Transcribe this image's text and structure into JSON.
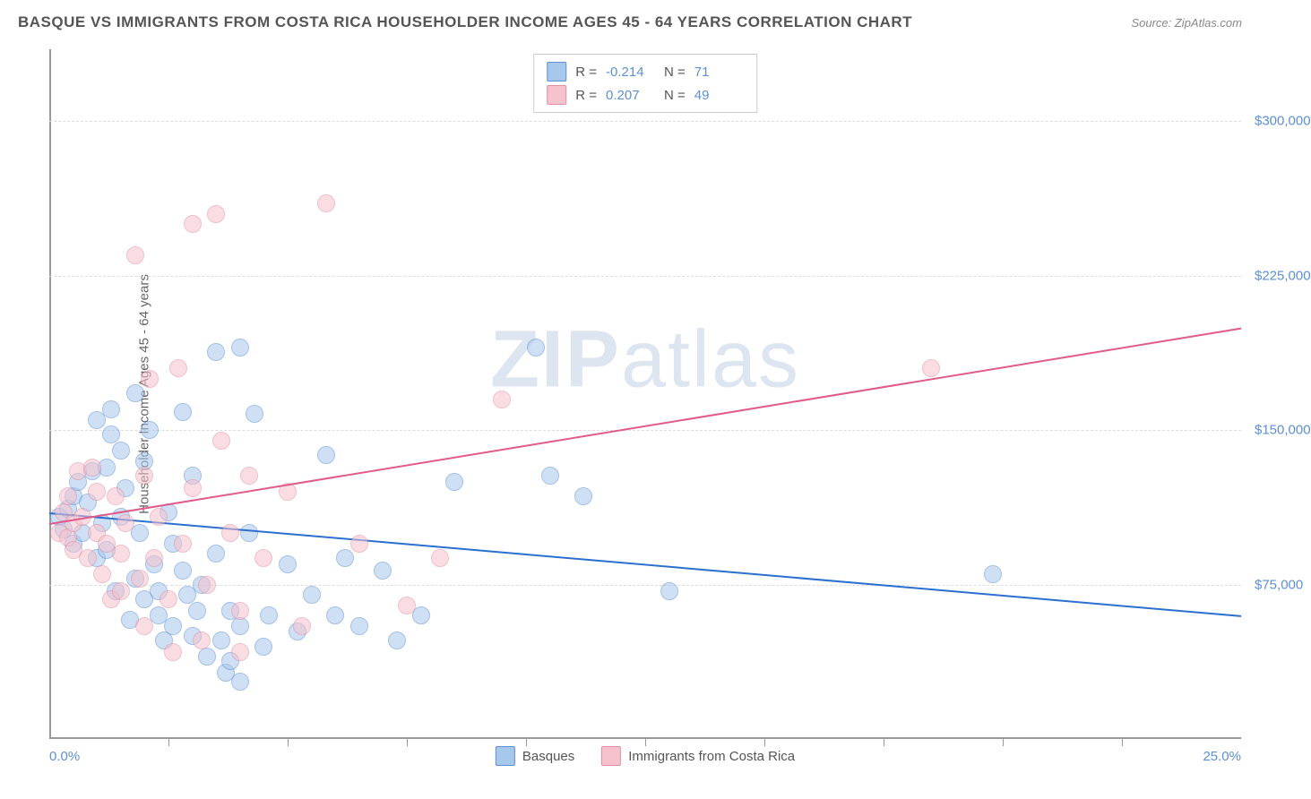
{
  "header": {
    "title": "BASQUE VS IMMIGRANTS FROM COSTA RICA HOUSEHOLDER INCOME AGES 45 - 64 YEARS CORRELATION CHART",
    "source_prefix": "Source: ",
    "source_name": "ZipAtlas.com"
  },
  "watermark": {
    "part1": "ZIP",
    "part2": "atlas"
  },
  "chart": {
    "type": "scatter",
    "ylabel": "Householder Income Ages 45 - 64 years",
    "xlim": [
      0,
      25
    ],
    "ylim": [
      0,
      335000
    ],
    "xmin_label": "0.0%",
    "xmax_label": "25.0%",
    "yticks": [
      75000,
      150000,
      225000,
      300000
    ],
    "ytick_labels": [
      "$75,000",
      "$150,000",
      "$225,000",
      "$300,000"
    ],
    "xtick_positions": [
      2.5,
      5,
      7.5,
      10,
      12.5,
      15,
      17.5,
      20,
      22.5
    ],
    "background_color": "#ffffff",
    "grid_color": "#dddddd",
    "axis_color": "#999999",
    "tick_label_color": "#5b8fd6",
    "marker_radius": 10,
    "marker_opacity": 0.55,
    "series": [
      {
        "name": "Basques",
        "fill_color": "#a8c7ec",
        "stroke_color": "#5b8fd6",
        "trend_color": "#2b6fd1",
        "r_value": "-0.214",
        "n_value": "71",
        "trend": {
          "x1": 0,
          "y1": 110000,
          "x2": 25,
          "y2": 60000
        },
        "points": [
          [
            0.2,
            108000
          ],
          [
            0.3,
            102000
          ],
          [
            0.4,
            112000
          ],
          [
            0.5,
            95000
          ],
          [
            0.5,
            118000
          ],
          [
            0.6,
            125000
          ],
          [
            0.7,
            100000
          ],
          [
            0.8,
            115000
          ],
          [
            0.9,
            130000
          ],
          [
            1.0,
            88000
          ],
          [
            1.0,
            155000
          ],
          [
            1.1,
            105000
          ],
          [
            1.2,
            132000
          ],
          [
            1.2,
            92000
          ],
          [
            1.3,
            148000
          ],
          [
            1.3,
            160000
          ],
          [
            1.4,
            72000
          ],
          [
            1.5,
            140000
          ],
          [
            1.5,
            108000
          ],
          [
            1.6,
            122000
          ],
          [
            1.7,
            58000
          ],
          [
            1.8,
            168000
          ],
          [
            1.8,
            78000
          ],
          [
            1.9,
            100000
          ],
          [
            2.0,
            135000
          ],
          [
            2.0,
            68000
          ],
          [
            2.1,
            150000
          ],
          [
            2.2,
            85000
          ],
          [
            2.3,
            72000
          ],
          [
            2.3,
            60000
          ],
          [
            2.4,
            48000
          ],
          [
            2.5,
            110000
          ],
          [
            2.6,
            95000
          ],
          [
            2.6,
            55000
          ],
          [
            2.8,
            159000
          ],
          [
            2.8,
            82000
          ],
          [
            2.9,
            70000
          ],
          [
            3.0,
            128000
          ],
          [
            3.0,
            50000
          ],
          [
            3.1,
            62000
          ],
          [
            3.2,
            75000
          ],
          [
            3.3,
            40000
          ],
          [
            3.5,
            188000
          ],
          [
            3.5,
            90000
          ],
          [
            3.6,
            48000
          ],
          [
            3.7,
            32000
          ],
          [
            3.8,
            62000
          ],
          [
            3.8,
            38000
          ],
          [
            4.0,
            55000
          ],
          [
            4.0,
            190000
          ],
          [
            4.0,
            28000
          ],
          [
            4.2,
            100000
          ],
          [
            4.3,
            158000
          ],
          [
            4.5,
            45000
          ],
          [
            4.6,
            60000
          ],
          [
            5.0,
            85000
          ],
          [
            5.2,
            52000
          ],
          [
            5.5,
            70000
          ],
          [
            5.8,
            138000
          ],
          [
            6.0,
            60000
          ],
          [
            6.2,
            88000
          ],
          [
            6.5,
            55000
          ],
          [
            7.0,
            82000
          ],
          [
            7.3,
            48000
          ],
          [
            7.8,
            60000
          ],
          [
            8.5,
            125000
          ],
          [
            10.2,
            190000
          ],
          [
            10.5,
            128000
          ],
          [
            11.2,
            118000
          ],
          [
            13.0,
            72000
          ],
          [
            19.8,
            80000
          ]
        ]
      },
      {
        "name": "Immigrants from Costa Rica",
        "fill_color": "#f5c2cd",
        "stroke_color": "#e28fa3",
        "trend_color": "#e05a8a",
        "r_value": "0.207",
        "n_value": "49",
        "trend": {
          "x1": 0,
          "y1": 105000,
          "x2": 25,
          "y2": 200000
        },
        "points": [
          [
            0.2,
            100000
          ],
          [
            0.3,
            110000
          ],
          [
            0.4,
            98000
          ],
          [
            0.4,
            118000
          ],
          [
            0.5,
            105000
          ],
          [
            0.5,
            92000
          ],
          [
            0.6,
            130000
          ],
          [
            0.7,
            108000
          ],
          [
            0.8,
            88000
          ],
          [
            0.9,
            132000
          ],
          [
            1.0,
            100000
          ],
          [
            1.0,
            120000
          ],
          [
            1.1,
            80000
          ],
          [
            1.2,
            95000
          ],
          [
            1.3,
            68000
          ],
          [
            1.4,
            118000
          ],
          [
            1.5,
            72000
          ],
          [
            1.5,
            90000
          ],
          [
            1.6,
            105000
          ],
          [
            1.8,
            235000
          ],
          [
            1.9,
            78000
          ],
          [
            2.0,
            128000
          ],
          [
            2.0,
            55000
          ],
          [
            2.1,
            175000
          ],
          [
            2.2,
            88000
          ],
          [
            2.3,
            108000
          ],
          [
            2.5,
            68000
          ],
          [
            2.6,
            42000
          ],
          [
            2.7,
            180000
          ],
          [
            2.8,
            95000
          ],
          [
            3.0,
            122000
          ],
          [
            3.0,
            250000
          ],
          [
            3.2,
            48000
          ],
          [
            3.3,
            75000
          ],
          [
            3.5,
            255000
          ],
          [
            3.6,
            145000
          ],
          [
            3.8,
            100000
          ],
          [
            4.0,
            62000
          ],
          [
            4.0,
            42000
          ],
          [
            4.2,
            128000
          ],
          [
            4.5,
            88000
          ],
          [
            5.0,
            120000
          ],
          [
            5.3,
            55000
          ],
          [
            5.8,
            260000
          ],
          [
            6.5,
            95000
          ],
          [
            7.5,
            65000
          ],
          [
            8.2,
            88000
          ],
          [
            9.5,
            165000
          ],
          [
            18.5,
            180000
          ]
        ]
      }
    ],
    "stat_legend": {
      "r_label": "R =",
      "n_label": "N ="
    },
    "bottom_legend": {
      "label1": "Basques",
      "label2": "Immigrants from Costa Rica"
    }
  }
}
